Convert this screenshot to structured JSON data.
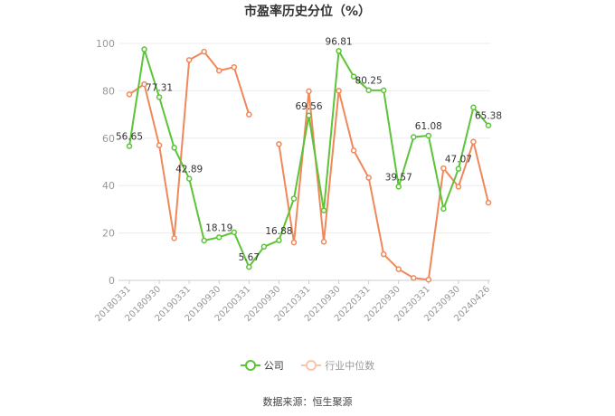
{
  "chart_data": {
    "type": "line",
    "title": "市盈率历史分位（%）",
    "ylim": [
      0,
      100
    ],
    "yticks": [
      0,
      20,
      40,
      60,
      80,
      100
    ],
    "x_tick_labels": [
      "20180331",
      "20180930",
      "20190331",
      "20190930",
      "20200331",
      "20200930",
      "20210331",
      "20210930",
      "20220331",
      "20220930",
      "20230331",
      "20230930",
      "20240426"
    ],
    "x": [
      "20180331",
      "20180630",
      "20180930",
      "20181231",
      "20190331",
      "20190630",
      "20190930",
      "20191231",
      "20200331",
      "20200630",
      "20200930",
      "20201231",
      "20210331",
      "20210630",
      "20210930",
      "20211231",
      "20220331",
      "20220630",
      "20220930",
      "20221231",
      "20230331",
      "20230630",
      "20230930",
      "20231231",
      "20240426"
    ],
    "grid": true,
    "legend_position": "bottom",
    "series": [
      {
        "name": "公司",
        "color": "#5cc437",
        "values": [
          56.65,
          97.5,
          77.31,
          56,
          42.89,
          16.8,
          18.19,
          20.3,
          5.67,
          14.2,
          16.88,
          34.5,
          69.56,
          29.5,
          96.81,
          86,
          80.25,
          80.2,
          39.57,
          60.5,
          61.08,
          30.2,
          47.07,
          73,
          65.38
        ],
        "labels": {
          "0": "56.65",
          "2": "77.31",
          "4": "42.89",
          "6": "18.19",
          "8": "5.67",
          "10": "16.88",
          "12": "69.56",
          "14": "96.81",
          "16": "80.25",
          "18": "39.57",
          "20": "61.08",
          "22": "47.07",
          "24": "65.38"
        }
      },
      {
        "name": "行业中位数",
        "color": "#f0885a",
        "values": [
          78.5,
          82.8,
          57,
          17.8,
          93,
          96.5,
          88.5,
          90,
          70,
          null,
          57.5,
          16,
          79.8,
          16.3,
          80,
          54.8,
          43.3,
          11,
          4.7,
          1,
          0.3,
          47.3,
          39.5,
          58.5,
          32.8
        ]
      }
    ]
  },
  "legend": {
    "company": "公司",
    "industry": "行业中位数"
  },
  "source": "数据来源：恒生聚源"
}
